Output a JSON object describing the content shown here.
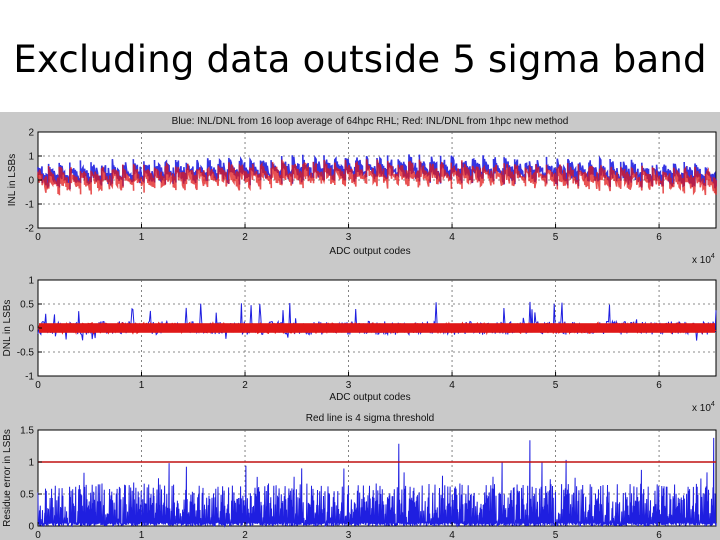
{
  "slide": {
    "title": "Excluding data outside 5 sigma band"
  },
  "chart_data": [
    {
      "type": "line",
      "title": "Blue: INL/DNL from 16 loop average of 64hpc RHL;  Red: INL/DNL from 1hpc new method",
      "xlabel": "ADC output codes",
      "ylabel": "INL in LSBs",
      "x_multiplier_label": "x 10",
      "x_multiplier_exp": "4",
      "xlim": [
        0,
        6.55
      ],
      "ylim": [
        -2,
        2
      ],
      "xticks": [
        "0",
        "1",
        "2",
        "3",
        "4",
        "5",
        "6"
      ],
      "yticks": [
        "-2",
        "-1",
        "0",
        "1",
        "2"
      ],
      "grid": true,
      "series": [
        {
          "name": "Blue",
          "color": "#1f1fe0",
          "pattern": "sawtooth",
          "cycles": 64,
          "baseline": 0.15,
          "amplitude": 0.55,
          "drift": 0.3
        },
        {
          "name": "Red",
          "color": "#e01818",
          "pattern": "sawtooth",
          "cycles": 64,
          "baseline": -0.05,
          "amplitude": 0.55,
          "drift": 0.3
        }
      ]
    },
    {
      "type": "line",
      "title": "",
      "xlabel": "ADC output codes",
      "ylabel": "DNL in LSBs",
      "x_multiplier_label": "x 10",
      "x_multiplier_exp": "4",
      "xlim": [
        0,
        6.55
      ],
      "ylim": [
        -1,
        1
      ],
      "xticks": [
        "0",
        "1",
        "2",
        "3",
        "4",
        "5",
        "6"
      ],
      "yticks": [
        "-1",
        "-0.5",
        "0",
        "0.5",
        "1"
      ],
      "grid": true,
      "series": [
        {
          "name": "Blue",
          "color": "#1f1fe0",
          "pattern": "noise",
          "band": 0.14,
          "spike_max": 0.55
        },
        {
          "name": "Red",
          "color": "#e01818",
          "pattern": "band",
          "band": 0.1
        }
      ]
    },
    {
      "type": "line",
      "title": "Red line is 4 sigma threshold",
      "xlabel": "",
      "ylabel": "Residue error in LSBs",
      "xlim": [
        0,
        6.55
      ],
      "ylim": [
        0,
        1.5
      ],
      "xticks": [
        "0",
        "1",
        "2",
        "3",
        "4",
        "5",
        "6"
      ],
      "yticks": [
        "0",
        "0.5",
        "1",
        "1.5"
      ],
      "grid": true,
      "threshold": 1.0,
      "series": [
        {
          "name": "Residue",
          "color": "#1f1fe0",
          "pattern": "abs-noise",
          "typical": 0.35,
          "spike_max": 1.45
        },
        {
          "name": "4 sigma threshold",
          "color": "#c01010",
          "pattern": "constant",
          "value": 1.0
        }
      ]
    }
  ]
}
